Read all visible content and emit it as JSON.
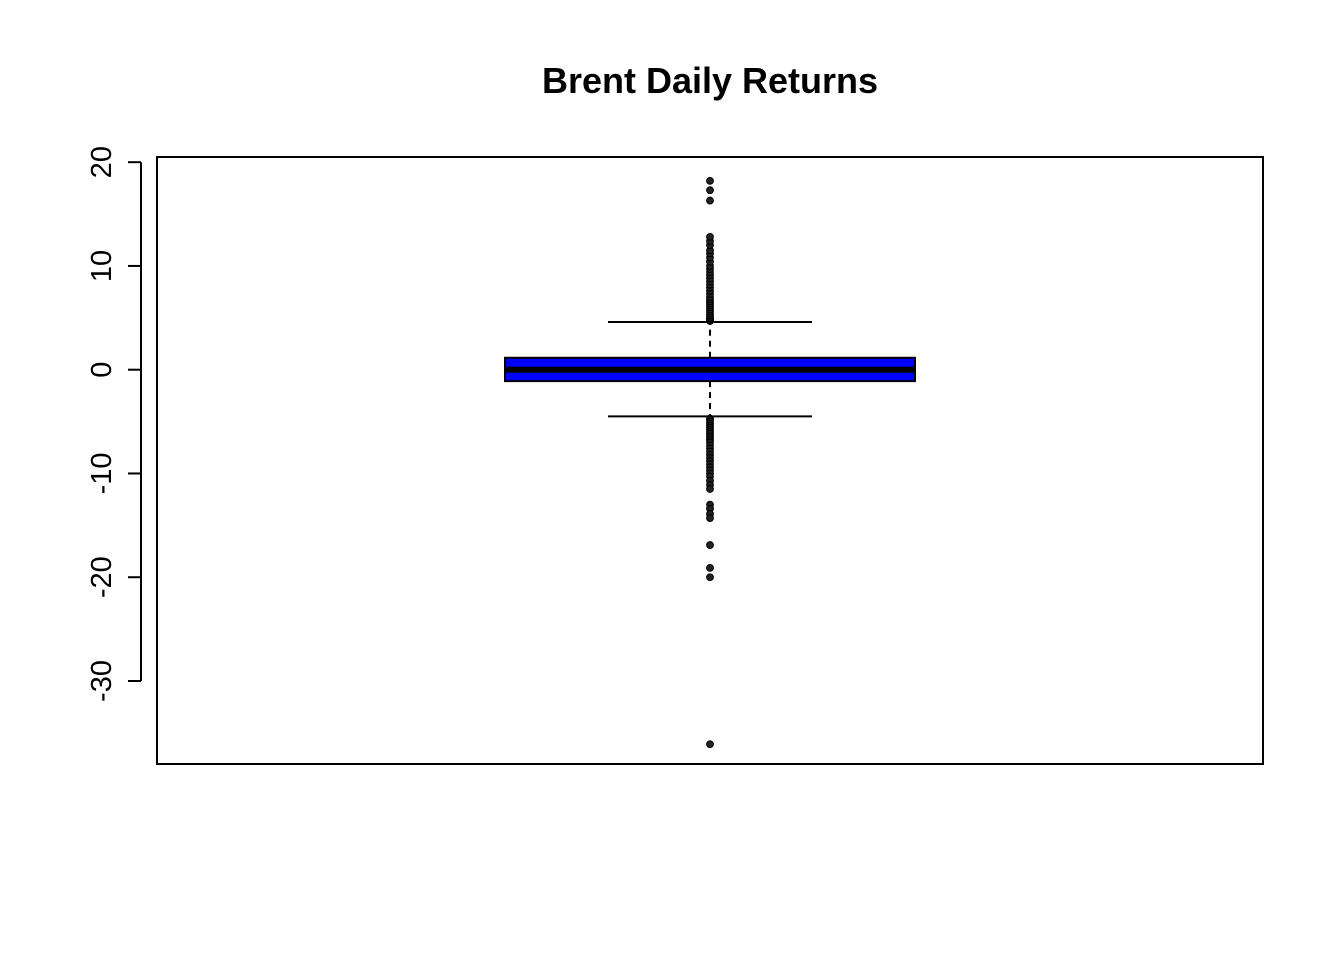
{
  "chart_data": {
    "type": "box",
    "title": "Brent Daily Returns",
    "xlabel": "",
    "ylabel": "",
    "ylim": [
      -38,
      20.5
    ],
    "y_ticks": [
      -30,
      -20,
      -10,
      0,
      10,
      20
    ],
    "y_tick_labels": [
      "-30",
      "-20",
      "-10",
      "0",
      "10",
      "20"
    ],
    "grid": false,
    "legend": "none",
    "box": {
      "q1": -1.1,
      "median": 0.0,
      "q3": 1.15,
      "whisker_low": -4.5,
      "whisker_high": 4.6,
      "fill_color": "#0000ff",
      "outliers_high": [
        4.7,
        4.8,
        4.9,
        5.0,
        5.2,
        5.4,
        5.6,
        5.8,
        6.0,
        6.2,
        6.4,
        6.6,
        6.8,
        7.0,
        7.3,
        7.6,
        7.9,
        8.2,
        8.5,
        8.8,
        9.1,
        9.4,
        9.7,
        10.0,
        10.4,
        10.8,
        11.2,
        11.5,
        12.0,
        12.4,
        12.8,
        16.3,
        17.3,
        18.2
      ],
      "outliers_low": [
        -4.7,
        -4.8,
        -5.0,
        -5.2,
        -5.4,
        -5.6,
        -5.8,
        -6.0,
        -6.2,
        -6.4,
        -6.6,
        -6.8,
        -7.0,
        -7.3,
        -7.6,
        -7.9,
        -8.2,
        -8.5,
        -8.8,
        -9.1,
        -9.4,
        -9.7,
        -10.0,
        -10.3,
        -10.7,
        -11.1,
        -11.5,
        -13.0,
        -13.4,
        -13.9,
        -14.3,
        -16.9,
        -19.1,
        -20.0,
        -36.1
      ]
    }
  }
}
